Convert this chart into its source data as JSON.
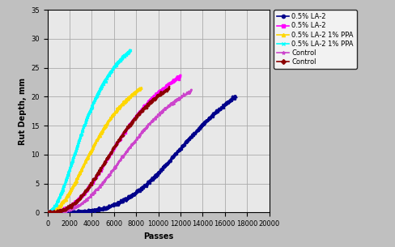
{
  "xlabel": "Passes",
  "ylabel": "Rut Depth, mm",
  "xlim": [
    0,
    20000
  ],
  "ylim": [
    0,
    35
  ],
  "xticks": [
    0,
    2000,
    4000,
    6000,
    8000,
    10000,
    12000,
    14000,
    16000,
    18000,
    20000
  ],
  "yticks": [
    0,
    5,
    10,
    15,
    20,
    25,
    30,
    35
  ],
  "series_params": [
    [
      "0.5% LA-2",
      "#00008B",
      17000,
      20.0,
      3.8,
      0.8,
      2.5
    ],
    [
      "0.5% LA-2",
      "#FF00FF",
      12000,
      23.5,
      2.6,
      0.62,
      2.0
    ],
    [
      "0.5% LA-2 1% PPA",
      "#FFD700",
      8500,
      21.5,
      2.2,
      0.58,
      1.8
    ],
    [
      "0.5% LA-2 1% PPA",
      "#00FFFF",
      7500,
      28.0,
      2.0,
      0.52,
      1.8
    ],
    [
      "Control",
      "#CC44CC",
      13000,
      21.0,
      2.8,
      0.65,
      1.5
    ],
    [
      "Control",
      "#8B0000",
      11000,
      21.5,
      2.7,
      0.63,
      1.5
    ]
  ],
  "background_color": "#C0C0C0",
  "plot_bg_color": "#E8E8E8",
  "grid_color": "#AAAAAA",
  "tick_fontsize": 6,
  "label_fontsize": 7,
  "legend_fontsize": 6
}
